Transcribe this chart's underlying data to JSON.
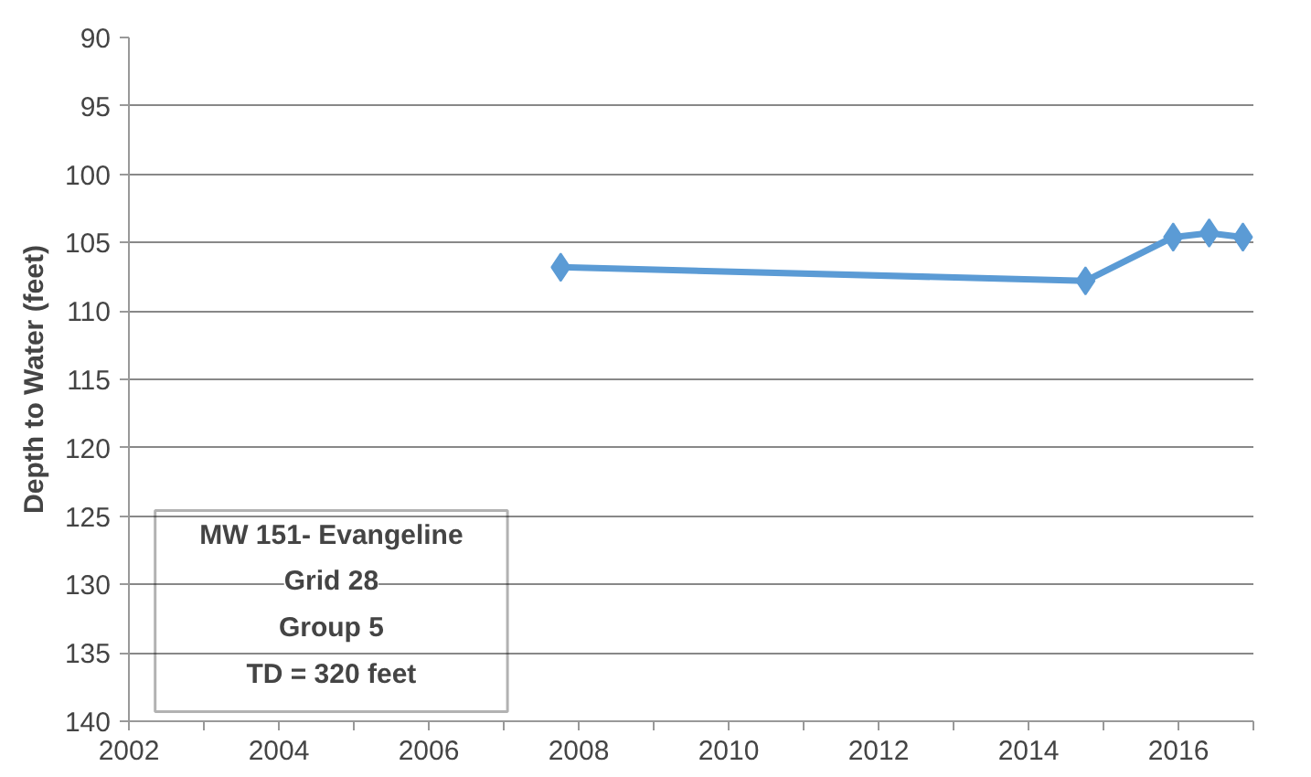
{
  "chart_data": {
    "type": "line",
    "ylabel": "Depth to Water (feet)",
    "x": [
      2007.76,
      2014.76,
      2015.93,
      2016.41,
      2016.86
    ],
    "series": [
      {
        "color": "#5b9bd5",
        "values": [
          106.8,
          107.8,
          104.6,
          104.3,
          104.6
        ]
      }
    ],
    "xlim": [
      2002,
      2017
    ],
    "xticks": [
      2002,
      {
        "value": 2003,
        "label": null
      },
      2004,
      {
        "value": 2005,
        "label": null
      },
      2006,
      {
        "value": 2007,
        "label": null
      },
      2008,
      {
        "value": 2009,
        "label": null
      },
      2010,
      {
        "value": 2011,
        "label": null
      },
      2012,
      {
        "value": 2013,
        "label": null
      },
      2014,
      {
        "value": 2015,
        "label": null
      },
      2016,
      {
        "value": 2017,
        "label": null
      }
    ],
    "ylim": [
      140,
      90
    ],
    "yticks": [
      90,
      95,
      100,
      105,
      110,
      115,
      120,
      125,
      130,
      135,
      140
    ],
    "grid": "y",
    "marker": "diamond",
    "line_style": "solid",
    "annotations": [
      "MW 151- Evangeline",
      "Grid 28",
      "Group 5",
      "TD = 320 feet"
    ]
  }
}
